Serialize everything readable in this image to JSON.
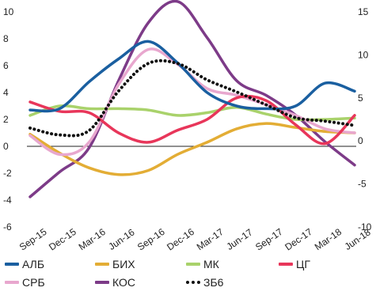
{
  "chart_data": {
    "type": "line",
    "x": [
      "Sep-15",
      "Dec-15",
      "Mar-16",
      "Jun-16",
      "Sep-16",
      "Dec-16",
      "Mar-17",
      "Jun-17",
      "Sep-17",
      "Dec-17",
      "Mar-18",
      "Jun-18"
    ],
    "y_left_ticks": [
      "10",
      "8",
      "6",
      "4",
      "2",
      "0",
      "-2",
      "-4",
      "-6"
    ],
    "y_right_ticks": [
      "15",
      "10",
      "5",
      "0",
      "-5",
      "-10"
    ],
    "ylim_left": [
      -6,
      10
    ],
    "ylim_right": [
      -10,
      15
    ],
    "grid": false,
    "legend_position": "bottom",
    "series": [
      {
        "name": "АЛБ",
        "axis": "left",
        "color": "#1a5fa0",
        "dotted": false,
        "values": [
          2.7,
          2.8,
          4.8,
          6.5,
          7.8,
          6.2,
          4.0,
          3.0,
          2.8,
          3.0,
          4.7,
          4.1
        ]
      },
      {
        "name": "БИХ",
        "axis": "left",
        "color": "#e3ad35",
        "dotted": false,
        "values": [
          0.9,
          -0.5,
          -1.6,
          -2.1,
          -1.8,
          -0.6,
          0.3,
          1.3,
          1.7,
          1.4,
          1.1,
          1.0
        ]
      },
      {
        "name": "МК",
        "axis": "left",
        "color": "#a9d26b",
        "dotted": false,
        "values": [
          2.3,
          3.0,
          2.8,
          2.8,
          2.7,
          2.3,
          2.5,
          2.9,
          2.4,
          2.0,
          2.0,
          2.1
        ]
      },
      {
        "name": "ЦГ",
        "axis": "left",
        "color": "#e8365a",
        "dotted": false,
        "values": [
          3.3,
          2.6,
          2.5,
          1.0,
          0.3,
          1.2,
          2.0,
          3.6,
          3.4,
          1.6,
          0.2,
          2.3
        ]
      },
      {
        "name": "СРБ",
        "axis": "left",
        "color": "#e8a7ce",
        "dotted": false,
        "values": [
          0.8,
          -0.6,
          0.3,
          4.6,
          7.2,
          6.1,
          4.3,
          3.8,
          3.1,
          2.3,
          1.3,
          1.0
        ]
      },
      {
        "name": "КОС",
        "axis": "right",
        "color": "#7d3b88",
        "dotted": false,
        "values": [
          -6.5,
          -3.6,
          -0.8,
          7.0,
          13.7,
          16.2,
          12.0,
          7.0,
          5.3,
          3.0,
          -0.1,
          -2.8
        ]
      },
      {
        "name": "ЗБ6",
        "axis": "right",
        "color": "#111111",
        "dotted": true,
        "values": [
          1.5,
          0.7,
          1.2,
          5.8,
          9.0,
          9.0,
          7.1,
          5.7,
          4.2,
          2.7,
          2.3,
          1.8
        ]
      }
    ]
  }
}
